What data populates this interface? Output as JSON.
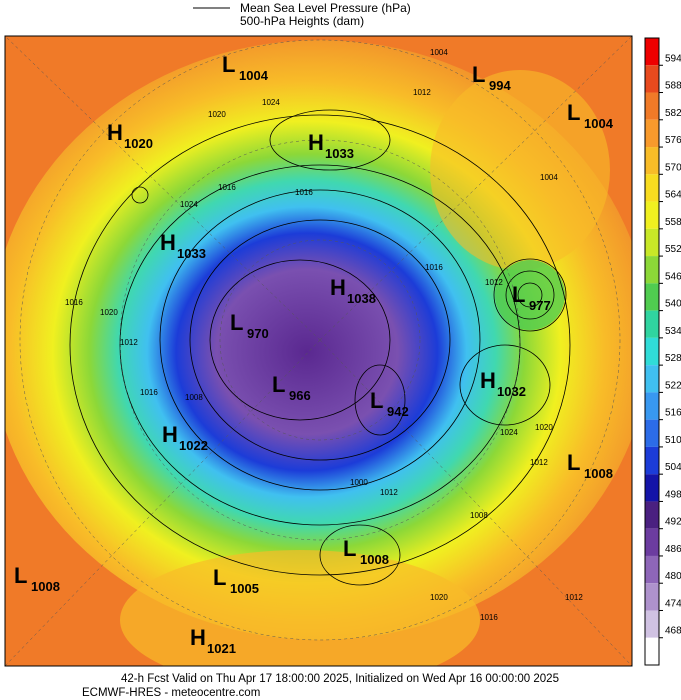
{
  "header": {
    "legend_line": "Mean Sea Level Pressure (hPa)",
    "legend_fill": "500-hPa Heights (dam)"
  },
  "centers": [
    {
      "symbol": "L",
      "value": 1004
    },
    {
      "symbol": "L",
      "value": 994
    },
    {
      "symbol": "L",
      "value": 1004
    },
    {
      "symbol": "H",
      "value": 1020
    },
    {
      "symbol": "H",
      "value": 1033
    },
    {
      "symbol": "H",
      "value": 1033
    },
    {
      "symbol": "L",
      "value": 977
    },
    {
      "symbol": "H",
      "value": 1038
    },
    {
      "symbol": "L",
      "value": 970
    },
    {
      "symbol": "L",
      "value": 966
    },
    {
      "symbol": "L",
      "value": 942
    },
    {
      "symbol": "H",
      "value": 1032
    },
    {
      "symbol": "H",
      "value": 1022
    },
    {
      "symbol": "L",
      "value": 1008
    },
    {
      "symbol": "L",
      "value": 1008
    },
    {
      "symbol": "L",
      "value": 1008
    },
    {
      "symbol": "L",
      "value": 1005
    },
    {
      "symbol": "H",
      "value": 1021
    }
  ],
  "contour_labels": [
    1004,
    1012,
    1016,
    1020,
    1024,
    1016,
    1024,
    1016,
    1020,
    1012,
    1008,
    1016,
    1024,
    1020,
    1012,
    1016,
    1000,
    1012,
    1008,
    1020,
    1016,
    1012,
    1004,
    1012
  ],
  "colorbar": {
    "ticks": [
      594,
      588,
      582,
      576,
      570,
      564,
      558,
      552,
      546,
      540,
      534,
      528,
      522,
      516,
      510,
      504,
      498,
      492,
      486,
      480,
      474,
      468
    ],
    "colors": [
      "#ee0000",
      "#e84a1e",
      "#f07a28",
      "#f89a2c",
      "#f8bc28",
      "#f8dc20",
      "#f0f020",
      "#c8e828",
      "#8cd838",
      "#50cc50",
      "#30d4a0",
      "#30dcd8",
      "#40c0f0",
      "#3898f0",
      "#2c6ce8",
      "#1c3cd8",
      "#1414a8",
      "#4a2080",
      "#6c3ca0",
      "#8e66b8",
      "#ae92cc",
      "#d0c2e2",
      "#ffffff"
    ]
  },
  "footer": {
    "line1": "42-h Fcst Valid on Thu Apr 17 18:00:00 2025, Initialized on Wed Apr 16 00:00:00 2025",
    "line2": "ECMWF-HRES - meteocentre.com"
  }
}
